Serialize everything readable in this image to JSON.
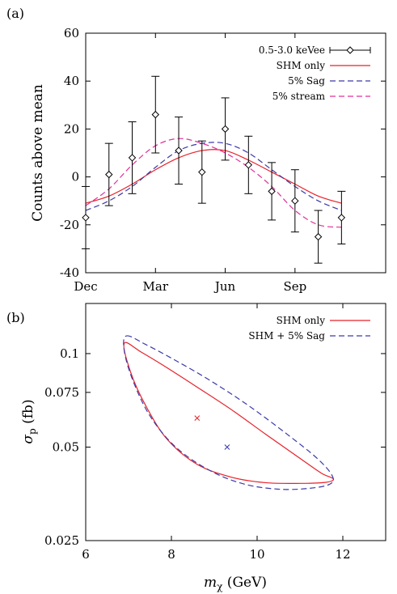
{
  "chart_data": [
    {
      "panel_label": "(a)",
      "type": "line",
      "ylabel": "Counts above mean",
      "xlabel": "",
      "xlim": [
        0,
        12.9
      ],
      "ylim": [
        -40,
        60
      ],
      "x_ticks": [
        {
          "value": 0,
          "label": "Dec"
        },
        {
          "value": 3,
          "label": "Mar"
        },
        {
          "value": 6,
          "label": "Jun"
        },
        {
          "value": 9,
          "label": "Sep"
        }
      ],
      "y_ticks": [
        -40,
        -20,
        0,
        20,
        40,
        60
      ],
      "legend_position": "top-right",
      "series": [
        {
          "name": "0.5-3.0 keVee",
          "kind": "errorbar",
          "color": "#000000",
          "points": [
            {
              "x": 0.0,
              "y": -17,
              "err": 13
            },
            {
              "x": 1.0,
              "y": 1,
              "err": 13
            },
            {
              "x": 2.0,
              "y": 8,
              "err": 15
            },
            {
              "x": 3.0,
              "y": 26,
              "err": 16
            },
            {
              "x": 4.0,
              "y": 11,
              "err": 14
            },
            {
              "x": 5.0,
              "y": 2,
              "err": 13
            },
            {
              "x": 6.0,
              "y": 20,
              "err": 13
            },
            {
              "x": 7.0,
              "y": 5,
              "err": 12
            },
            {
              "x": 8.0,
              "y": -6,
              "err": 12
            },
            {
              "x": 9.0,
              "y": -10,
              "err": 13
            },
            {
              "x": 10.0,
              "y": -25,
              "err": 11
            },
            {
              "x": 11.0,
              "y": -17,
              "err": 11
            }
          ]
        },
        {
          "name": "SHM only",
          "kind": "line",
          "color": "#e8202a",
          "dash": "",
          "x": [
            0.0,
            1.0,
            2.0,
            3.0,
            4.0,
            5.0,
            6.0,
            7.0,
            8.0,
            9.0,
            10.0,
            11.0
          ],
          "y": [
            -11,
            -8,
            -3,
            3,
            8,
            11,
            11,
            7,
            2,
            -3,
            -8,
            -11
          ]
        },
        {
          "name": "5% Sag",
          "kind": "line",
          "color": "#3a3aa8",
          "dash": "7,4",
          "x": [
            0.0,
            1.0,
            2.0,
            3.0,
            4.0,
            5.0,
            6.0,
            7.0,
            8.0,
            9.0,
            10.0,
            11.0
          ],
          "y": [
            -14,
            -10,
            -4,
            4,
            11,
            14,
            14,
            10,
            3,
            -4,
            -10,
            -14
          ]
        },
        {
          "name": "5% stream",
          "kind": "line",
          "color": "#e0309a",
          "dash": "7,4",
          "x": [
            0.0,
            1.0,
            2.0,
            3.0,
            4.0,
            5.0,
            6.0,
            7.0,
            8.0,
            9.0,
            10.0,
            11.0
          ],
          "y": [
            -12,
            -5,
            5,
            13,
            16,
            14,
            10,
            4,
            -4,
            -14,
            -20,
            -21
          ]
        }
      ]
    },
    {
      "panel_label": "(b)",
      "type": "contour",
      "ylabel": "σ",
      "ylabel_sub": "p",
      "ylabel_unit": " (fb)",
      "xlabel": "m",
      "xlabel_sub": "χ",
      "xlabel_unit": " (GeV)",
      "xlim": [
        6,
        13
      ],
      "ylim": [
        0.025,
        0.145
      ],
      "y_scale": "log",
      "x_ticks": [
        6,
        8,
        10,
        12
      ],
      "y_ticks": [
        {
          "value": 0.025,
          "label": "0.025"
        },
        {
          "value": 0.05,
          "label": "0.05"
        },
        {
          "value": 0.075,
          "label": "0.075"
        },
        {
          "value": 0.1,
          "label": "0.1"
        }
      ],
      "legend_position": "top-right",
      "series": [
        {
          "name": "SHM only",
          "color": "#e8202a",
          "dash": "",
          "contour": [
            [
              6.9,
              0.108
            ],
            [
              7.3,
              0.101
            ],
            [
              7.9,
              0.09
            ],
            [
              8.6,
              0.078
            ],
            [
              9.4,
              0.066
            ],
            [
              10.2,
              0.055
            ],
            [
              11.0,
              0.046
            ],
            [
              11.5,
              0.0412
            ],
            [
              11.78,
              0.0395
            ],
            [
              11.6,
              0.0385
            ],
            [
              11.0,
              0.0382
            ],
            [
              10.2,
              0.0384
            ],
            [
              9.4,
              0.04
            ],
            [
              8.6,
              0.044
            ],
            [
              7.9,
              0.053
            ],
            [
              7.4,
              0.068
            ],
            [
              7.05,
              0.087
            ],
            [
              6.9,
              0.108
            ]
          ],
          "best_fit": {
            "x": 8.6,
            "y": 0.062
          }
        },
        {
          "name": "SHM + 5% Sag",
          "color": "#3a3aa8",
          "dash": "7,4",
          "contour": [
            [
              6.95,
              0.114
            ],
            [
              7.4,
              0.107
            ],
            [
              8.1,
              0.095
            ],
            [
              8.9,
              0.082
            ],
            [
              9.8,
              0.068
            ],
            [
              10.7,
              0.055
            ],
            [
              11.4,
              0.046
            ],
            [
              11.75,
              0.0405
            ],
            [
              11.7,
              0.038
            ],
            [
              11.2,
              0.0368
            ],
            [
              10.5,
              0.0366
            ],
            [
              9.7,
              0.038
            ],
            [
              8.9,
              0.042
            ],
            [
              8.1,
              0.05
            ],
            [
              7.5,
              0.063
            ],
            [
              7.1,
              0.082
            ],
            [
              6.9,
              0.102
            ],
            [
              6.95,
              0.114
            ]
          ],
          "best_fit": {
            "x": 9.3,
            "y": 0.05
          }
        }
      ]
    }
  ]
}
